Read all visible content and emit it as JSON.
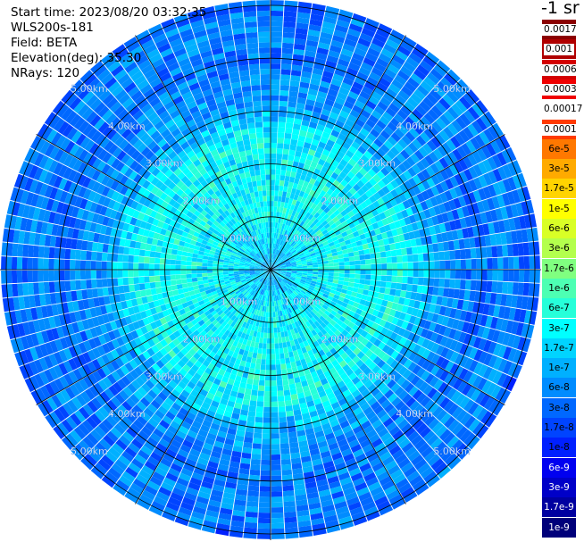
{
  "info": {
    "start_time": "Start time: 2023/08/20 03:32:35",
    "instrument": "WLS200s-181",
    "field": "Field: BETA",
    "elevation": "Elevation(deg): 35.30",
    "nrays": "NRays: 120"
  },
  "colorbar": {
    "title": "-1 sr",
    "entries": [
      {
        "label": "0.0017",
        "color": "#8b0000",
        "text_color": "#000000",
        "box": true
      },
      {
        "label": "0.001",
        "color": "#b00000",
        "text_color": "#000000",
        "box": true
      },
      {
        "label": "0.0006",
        "color": "#d40000",
        "text_color": "#000000",
        "box": true
      },
      {
        "label": "0.0003",
        "color": "#f00000",
        "text_color": "#000000",
        "box": true
      },
      {
        "label": "0.00017",
        "color": "#ffffff",
        "text_color": "#000000",
        "box": false
      },
      {
        "label": "0.0001",
        "color": "#ff3a00",
        "text_color": "#000000",
        "box": true
      },
      {
        "label": "6e-5",
        "color": "#ff7800",
        "text_color": "#000000",
        "box": false
      },
      {
        "label": "3e-5",
        "color": "#ffaa00",
        "text_color": "#000000",
        "box": false
      },
      {
        "label": "1.7e-5",
        "color": "#ffd400",
        "text_color": "#000000",
        "box": false
      },
      {
        "label": "1e-5",
        "color": "#ffff00",
        "text_color": "#000000",
        "box": false
      },
      {
        "label": "6e-6",
        "color": "#d9ff26",
        "text_color": "#000000",
        "box": false
      },
      {
        "label": "3e-6",
        "color": "#b3ff4d",
        "text_color": "#000000",
        "box": false
      },
      {
        "label": "1.7e-6",
        "color": "#80ff80",
        "text_color": "#000000",
        "box": false
      },
      {
        "label": "1e-6",
        "color": "#4dffb3",
        "text_color": "#000000",
        "box": false
      },
      {
        "label": "6e-7",
        "color": "#26ffd9",
        "text_color": "#000000",
        "box": false
      },
      {
        "label": "3e-7",
        "color": "#00ffff",
        "text_color": "#000000",
        "box": false
      },
      {
        "label": "1.7e-7",
        "color": "#00d4ff",
        "text_color": "#000000",
        "box": false
      },
      {
        "label": "1e-7",
        "color": "#00b0ff",
        "text_color": "#000000",
        "box": false
      },
      {
        "label": "6e-8",
        "color": "#008cff",
        "text_color": "#000000",
        "box": false
      },
      {
        "label": "3e-8",
        "color": "#0068ff",
        "text_color": "#000000",
        "box": false
      },
      {
        "label": "1.7e-8",
        "color": "#0044ff",
        "text_color": "#000000",
        "box": false
      },
      {
        "label": "1e-8",
        "color": "#0020ff",
        "text_color": "#000000",
        "box": false
      },
      {
        "label": "6e-9",
        "color": "#0000f0",
        "text_color": "#ffffff",
        "box": false
      },
      {
        "label": "3e-9",
        "color": "#0000c8",
        "text_color": "#ffffff",
        "box": false
      },
      {
        "label": "1.7e-9",
        "color": "#0000a0",
        "text_color": "#ffffff",
        "box": false
      },
      {
        "label": "1e-9",
        "color": "#00007a",
        "text_color": "#ffffff",
        "box": false
      }
    ]
  },
  "chart_data": {
    "type": "heatmap",
    "projection": "polar (PPI scan)",
    "field": "BETA",
    "nrays": 120,
    "range_unit": "km",
    "range_ring_labels": [
      "1.00km",
      "2.00km",
      "3.00km",
      "4.00km",
      "5.00km"
    ],
    "range_rings_km": [
      1,
      2,
      3,
      4,
      5
    ],
    "max_range_km": 5.1,
    "spokes_deg": [
      0,
      30,
      60,
      90,
      120,
      150,
      180,
      210,
      240,
      270,
      300,
      330
    ],
    "range_profile": [
      {
        "range_km": 0.0,
        "value": "1e-7"
      },
      {
        "range_km": 0.5,
        "value": "1.7e-7"
      },
      {
        "range_km": 1.0,
        "value": "3e-7"
      },
      {
        "range_km": 2.0,
        "value": "3e-7"
      },
      {
        "range_km": 2.5,
        "value": "3e-7"
      },
      {
        "range_km": 3.0,
        "value": "1e-7"
      },
      {
        "range_km": 3.5,
        "value": "6e-8"
      },
      {
        "range_km": 4.0,
        "value": "3e-8"
      },
      {
        "range_km": 4.5,
        "value": "6e-8"
      },
      {
        "range_km": 5.0,
        "value": "3e-8"
      }
    ],
    "grid": true,
    "colorbar_title": "-1 sr",
    "colormap": "jet, log scale 1e-9 to 0.0017"
  }
}
